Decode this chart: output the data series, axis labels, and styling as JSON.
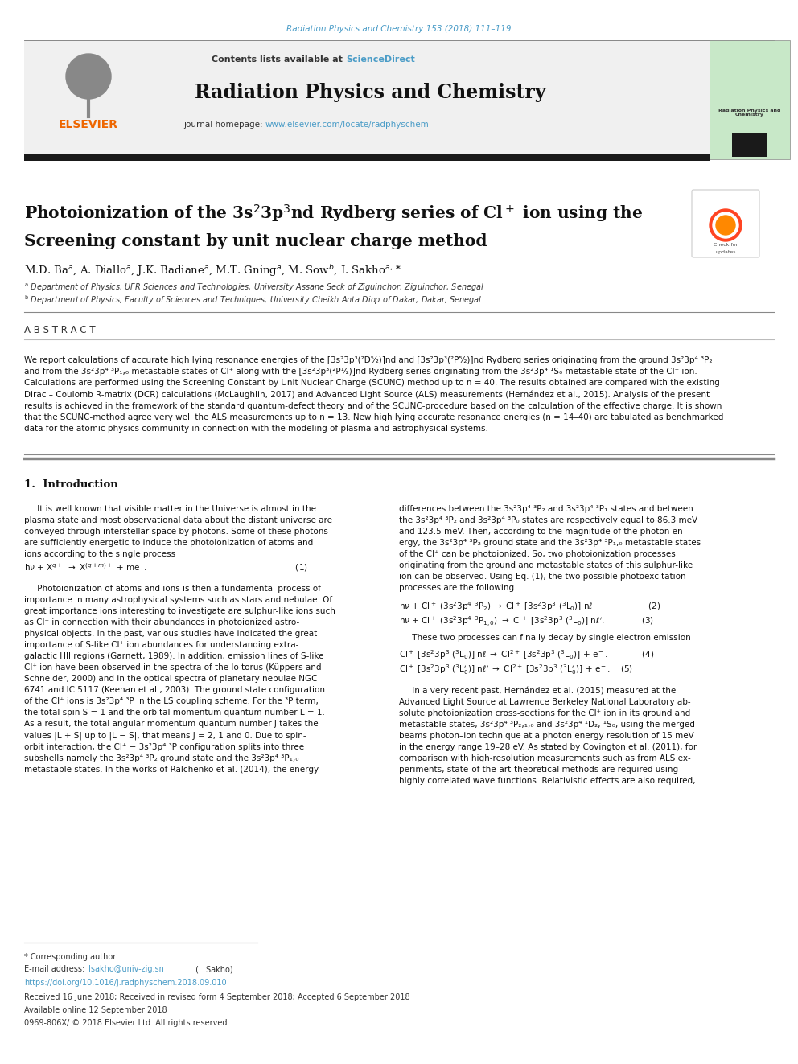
{
  "page_width": 9.92,
  "page_height": 13.23,
  "background_color": "#ffffff",
  "top_journal_ref": "Radiation Physics and Chemistry 153 (2018) 111–119",
  "top_journal_ref_color": "#4a9cc7",
  "header_bg_color": "#f0f0f0",
  "header_contents_text": "Contents lists available at ",
  "header_sciencedirect": "ScienceDirect",
  "header_sciencedirect_color": "#4a9cc7",
  "journal_title": "Radiation Physics and Chemistry",
  "journal_homepage_text": "journal homepage: ",
  "journal_homepage_url": "www.elsevier.com/locate/radphyschem",
  "journal_homepage_url_color": "#4a9cc7",
  "black_bar_color": "#1a1a1a",
  "abstract_title": "A B S T R A C T",
  "abstract_text": "We report calculations of accurate high lying resonance energies of the [3s²3p³(²D⁵⁄₂)]nd and [3s²3p³(²P⁵⁄₂)]nd Rydberg series originating from the ground 3s²3p⁴ ³P₂\nand from the 3s²3p⁴ ³P₁,₀ metastable states of Cl⁺ along with the [3s²3p³(²P¹⁄₂)]nd Rydberg series originating from the 3s²3p⁴ ¹S₀ metastable state of the Cl⁺ ion.\nCalculations are performed using the Screening Constant by Unit Nuclear Charge (SCUNC) method up to n = 40. The results obtained are compared with the existing\nDirac – Coulomb R-matrix (DCR) calculations (McLaughlin, 2017) and Advanced Light Source (ALS) measurements (Hernández et al., 2015). Analysis of the present\nresults is achieved in the framework of the standard quantum-defect theory and of the SCUNC-procedure based on the calculation of the effective charge. It is shown\nthat the SCUNC-method agree very well the ALS measurements up to n = 13. New high lying accurate resonance energies (n = 14–40) are tabulated as benchmarked\ndata for the atomic physics community in connection with the modeling of plasma and astrophysical systems.",
  "section1_title": "1.  Introduction",
  "footnote_star": "* Corresponding author.",
  "footnote_email_label": "E-mail address: ",
  "footnote_email": "Isakho@univ-zig.sn",
  "footnote_email_color": "#4a9cc7",
  "footnote_email_end": " (I. Sakho).",
  "footnote_doi_color": "#4a9cc7",
  "footnote_doi": "https://doi.org/10.1016/j.radphyschem.2018.09.010",
  "footnote_received": "Received 16 June 2018; Received in revised form 4 September 2018; Accepted 6 September 2018",
  "footnote_online": "Available online 12 September 2018",
  "footnote_copyright": "0969-806X/ © 2018 Elsevier Ltd. All rights reserved."
}
